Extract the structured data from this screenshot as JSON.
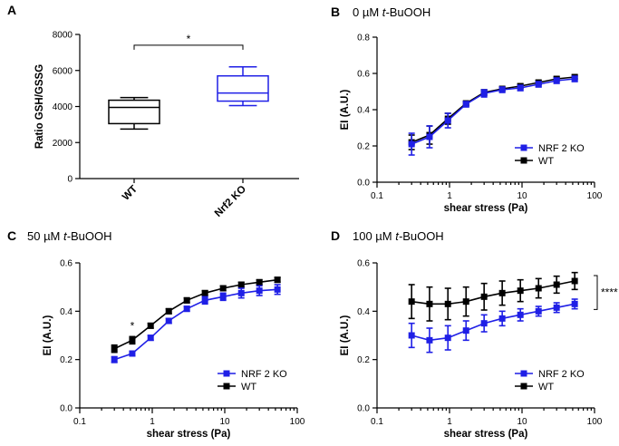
{
  "colors": {
    "ko": "#1f1fe6",
    "wt": "#000000"
  },
  "chart_data": [
    {
      "id": "A",
      "type": "boxplot",
      "panel_label": "A",
      "ylabel": "Ratio GSH/GSSG",
      "ylim": [
        0,
        8000
      ],
      "yticks": [
        0,
        2000,
        4000,
        6000,
        8000
      ],
      "categories": [
        "WT",
        "Nrf2 KO"
      ],
      "boxes": [
        {
          "name": "WT",
          "min": 2750,
          "q1": 3050,
          "median": 3950,
          "q3": 4350,
          "max": 4500,
          "color": "#000000"
        },
        {
          "name": "Nrf2 KO",
          "min": 4050,
          "q1": 4300,
          "median": 4750,
          "q3": 5700,
          "max": 6200,
          "color": "#1f1fe6"
        }
      ],
      "significance": {
        "label": "*",
        "between": [
          "WT",
          "Nrf2 KO"
        ],
        "y": 7400
      }
    },
    {
      "id": "B",
      "type": "line",
      "panel_label": "B",
      "title_prefix": "0 µM ",
      "title_italic": "t-",
      "title_suffix": "BuOOH",
      "xlabel": "shear stress (Pa)",
      "ylabel": "EI (A.U.)",
      "xscale": "log",
      "xlim": [
        0.1,
        100
      ],
      "xticks": [
        0.1,
        1,
        10,
        100
      ],
      "xticklabels": [
        "0.1",
        "1",
        "10",
        "100"
      ],
      "ylim": [
        0.0,
        0.8
      ],
      "yticks": [
        0.0,
        0.2,
        0.4,
        0.6,
        0.8
      ],
      "yticklabels": [
        "0.0",
        "0.2",
        "0.4",
        "0.6",
        "0.8"
      ],
      "x": [
        0.3,
        0.53,
        0.95,
        1.69,
        3.0,
        5.33,
        9.49,
        16.9,
        30,
        53.3
      ],
      "series": [
        {
          "name": "NRF 2 KO",
          "values": [
            0.21,
            0.25,
            0.34,
            0.43,
            0.49,
            0.51,
            0.52,
            0.54,
            0.56,
            0.57
          ],
          "err": [
            0.06,
            0.06,
            0.04,
            0.015,
            0.02,
            0.015,
            0.015,
            0.015,
            0.015,
            0.015
          ]
        },
        {
          "name": "WT",
          "values": [
            0.22,
            0.26,
            0.35,
            0.435,
            0.495,
            0.515,
            0.53,
            0.55,
            0.57,
            0.58
          ],
          "err": [
            0.04,
            0.05,
            0.03,
            0.01,
            0.015,
            0.01,
            0.01,
            0.01,
            0.01,
            0.01
          ]
        }
      ],
      "legend": [
        "NRF 2 KO",
        "WT"
      ],
      "annotations": []
    },
    {
      "id": "C",
      "type": "line",
      "panel_label": "C",
      "title_prefix": "50 µM ",
      "title_italic": "t-",
      "title_suffix": "BuOOH",
      "xlabel": "shear stress (Pa)",
      "ylabel": "EI (A.U.)",
      "xscale": "log",
      "xlim": [
        0.1,
        100
      ],
      "xticks": [
        0.1,
        1,
        10,
        100
      ],
      "xticklabels": [
        "0.1",
        "1",
        "10",
        "100"
      ],
      "ylim": [
        0.0,
        0.6
      ],
      "yticks": [
        0.0,
        0.2,
        0.4,
        0.6
      ],
      "yticklabels": [
        "0.0",
        "0.2",
        "0.4",
        "0.6"
      ],
      "x": [
        0.3,
        0.53,
        0.95,
        1.69,
        3.0,
        5.33,
        9.49,
        16.9,
        30,
        53.3
      ],
      "series": [
        {
          "name": "NRF 2 KO",
          "values": [
            0.2,
            0.225,
            0.29,
            0.36,
            0.41,
            0.445,
            0.46,
            0.475,
            0.485,
            0.49
          ],
          "err": [
            0.012,
            0.01,
            0.01,
            0.01,
            0.01,
            0.015,
            0.015,
            0.02,
            0.02,
            0.02
          ]
        },
        {
          "name": "WT",
          "values": [
            0.245,
            0.28,
            0.34,
            0.4,
            0.445,
            0.475,
            0.495,
            0.51,
            0.52,
            0.53
          ],
          "err": [
            0.015,
            0.015,
            0.01,
            0.01,
            0.01,
            0.01,
            0.01,
            0.01,
            0.01,
            0.01
          ]
        }
      ],
      "legend": [
        "NRF 2 KO",
        "WT"
      ],
      "annotations": [
        {
          "label": "*",
          "x": 0.53,
          "y": 0.325
        }
      ]
    },
    {
      "id": "D",
      "type": "line",
      "panel_label": "D",
      "title_prefix": "100 µM ",
      "title_italic": "t-",
      "title_suffix": "BuOOH",
      "xlabel": "shear stress (Pa)",
      "ylabel": "EI (A.U.)",
      "xscale": "log",
      "xlim": [
        0.1,
        100
      ],
      "xticks": [
        0.1,
        1,
        10,
        100
      ],
      "xticklabels": [
        "0.1",
        "1",
        "10",
        "100"
      ],
      "ylim": [
        0.0,
        0.6
      ],
      "yticks": [
        0.0,
        0.2,
        0.4,
        0.6
      ],
      "yticklabels": [
        "0.0",
        "0.2",
        "0.4",
        "0.6"
      ],
      "x": [
        0.3,
        0.53,
        0.95,
        1.69,
        3.0,
        5.33,
        9.49,
        16.9,
        30,
        53.3
      ],
      "series": [
        {
          "name": "NRF 2 KO",
          "values": [
            0.3,
            0.28,
            0.29,
            0.32,
            0.35,
            0.37,
            0.385,
            0.4,
            0.415,
            0.43
          ],
          "err": [
            0.05,
            0.05,
            0.05,
            0.04,
            0.035,
            0.03,
            0.025,
            0.02,
            0.02,
            0.02
          ]
        },
        {
          "name": "WT",
          "values": [
            0.44,
            0.43,
            0.43,
            0.44,
            0.46,
            0.475,
            0.485,
            0.495,
            0.51,
            0.525
          ],
          "err": [
            0.07,
            0.07,
            0.065,
            0.06,
            0.055,
            0.05,
            0.045,
            0.04,
            0.035,
            0.035
          ]
        }
      ],
      "legend": [
        "NRF 2 KO",
        "WT"
      ],
      "annotations": [
        {
          "label": "****",
          "bracket": true
        }
      ]
    }
  ]
}
